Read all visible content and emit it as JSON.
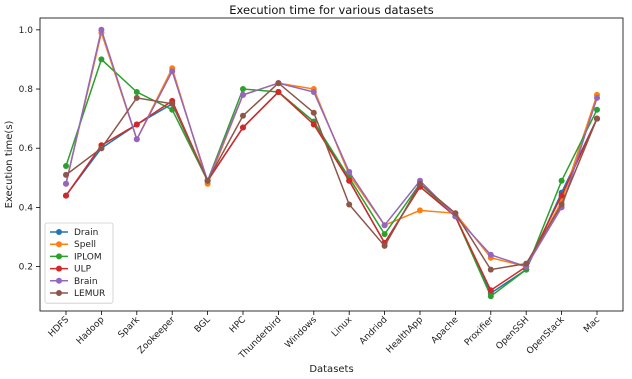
{
  "chart_data": {
    "type": "line",
    "title": "Execution time for various datasets",
    "xlabel": "Datasets",
    "ylabel": "Execution time(s)",
    "ylim": [
      0.05,
      1.04
    ],
    "yticks": [
      0.2,
      0.4,
      0.6,
      0.8,
      1.0
    ],
    "ytick_labels": [
      "0.2",
      "0.4",
      "0.6",
      "0.8",
      "1.0"
    ],
    "grid": false,
    "legend_position": "lower-left",
    "categories": [
      "HDFS",
      "Hadoop",
      "Spark",
      "Zookeeper",
      "BGL",
      "HPC",
      "Thunderbird",
      "Windows",
      "Linux",
      "Andriod",
      "HealthApp",
      "Apache",
      "Proxifier",
      "OpenSSH",
      "OpenStack",
      "Mac"
    ],
    "series": [
      {
        "name": "Drain",
        "color": "#1f77b4",
        "values": [
          0.44,
          0.6,
          0.68,
          0.75,
          0.49,
          0.67,
          0.79,
          0.69,
          0.49,
          0.28,
          0.47,
          0.37,
          0.11,
          0.19,
          0.45,
          0.7
        ]
      },
      {
        "name": "Spell",
        "color": "#ff7f0e",
        "values": [
          0.48,
          0.99,
          0.63,
          0.87,
          0.48,
          0.78,
          0.82,
          0.8,
          0.51,
          0.34,
          0.39,
          0.38,
          0.23,
          0.2,
          0.42,
          0.78
        ]
      },
      {
        "name": "IPLOM",
        "color": "#2ca02c",
        "values": [
          0.54,
          0.9,
          0.79,
          0.73,
          0.49,
          0.8,
          0.79,
          0.69,
          0.5,
          0.31,
          0.48,
          0.37,
          0.1,
          0.19,
          0.49,
          0.73
        ]
      },
      {
        "name": "ULP",
        "color": "#d62728",
        "values": [
          0.44,
          0.61,
          0.68,
          0.76,
          0.49,
          0.67,
          0.79,
          0.68,
          0.49,
          0.28,
          0.47,
          0.37,
          0.12,
          0.2,
          0.44,
          0.7
        ]
      },
      {
        "name": "Brain",
        "color": "#9467bd",
        "values": [
          0.48,
          1.0,
          0.63,
          0.86,
          0.49,
          0.78,
          0.82,
          0.79,
          0.52,
          0.34,
          0.49,
          0.37,
          0.24,
          0.2,
          0.4,
          0.77
        ]
      },
      {
        "name": "LEMUR",
        "color": "#8c564b",
        "values": [
          0.51,
          0.6,
          0.77,
          0.75,
          0.49,
          0.71,
          0.82,
          0.72,
          0.41,
          0.27,
          0.48,
          0.38,
          0.19,
          0.21,
          0.41,
          0.7
        ]
      }
    ]
  }
}
